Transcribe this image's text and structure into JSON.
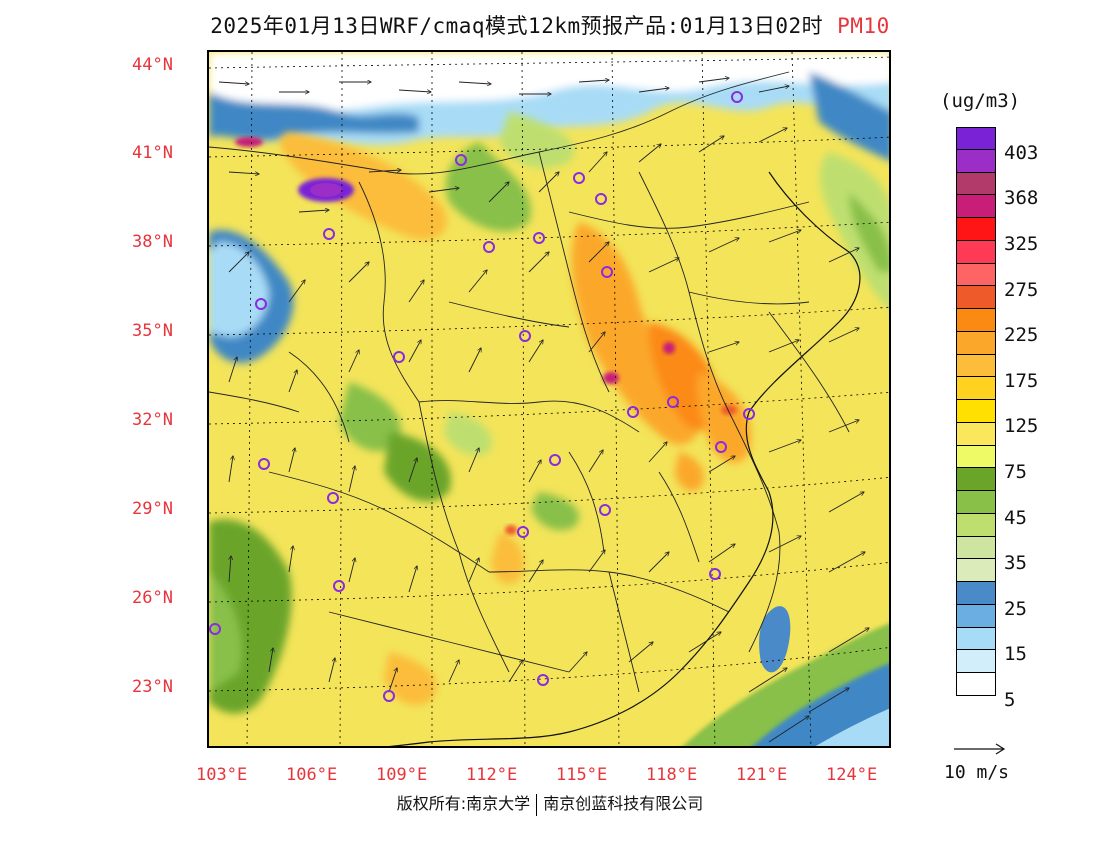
{
  "title": {
    "text": "2025年01月13日WRF/cmaq模式12km预报产品:01月13日02时",
    "pollutant": "PM10"
  },
  "colorbar": {
    "unit": "(ug/m3)",
    "tick_labels": [
      "403",
      "368",
      "325",
      "275",
      "225",
      "175",
      "125",
      "75",
      "45",
      "35",
      "25",
      "15",
      "5"
    ],
    "colors": [
      "#7a22d6",
      "#9b2ec7",
      "#b23a6a",
      "#c81e78",
      "#ff1515",
      "#ff3a55",
      "#ff6464",
      "#ef5a2a",
      "#fb8a12",
      "#fba82a",
      "#fbbd3a",
      "#ffd21f",
      "#ffe000",
      "#fbe75c",
      "#eefa66",
      "#6aa52a",
      "#88c048",
      "#bedf70",
      "#cde5a0",
      "#dcebba",
      "#4a8ac8",
      "#6aaee2",
      "#a8dcf6",
      "#d3eefb",
      "#ffffff"
    ]
  },
  "axes": {
    "lat_labels": [
      "44°N",
      "41°N",
      "38°N",
      "35°N",
      "32°N",
      "29°N",
      "26°N",
      "23°N"
    ],
    "lon_labels": [
      "103°E",
      "106°E",
      "109°E",
      "112°E",
      "115°E",
      "118°E",
      "121°E",
      "124°E"
    ]
  },
  "wind_reference": "10 m/s",
  "copyright": {
    "left": "版权所有:南京大学",
    "right": "南京创蓝科技有限公司"
  },
  "palette": {
    "low_green": "#7cb342",
    "yellow": "#f7e55c",
    "orange": "#f4a93a",
    "hotspot": "#d62a7a",
    "sea_blue": "#3f88c5",
    "light_blue": "#a8dcf6",
    "station_circle": "#8a2be2"
  }
}
